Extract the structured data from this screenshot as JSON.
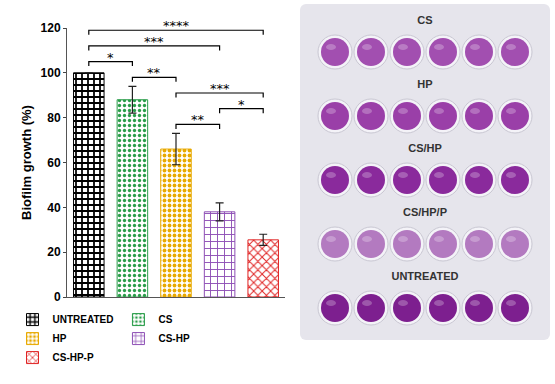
{
  "chart_data": {
    "type": "bar",
    "y_label": "Biofilm growth (%)",
    "categories": [
      "UNTREATED",
      "CS",
      "HP",
      "CS-HP",
      "CS-HP-P"
    ],
    "values": [
      100,
      88,
      66,
      38,
      25.5
    ],
    "errors": [
      0,
      6,
      7,
      4,
      2.5
    ],
    "colors": [
      "#000000",
      "#2a9d4a",
      "#e8a900",
      "#8e4fb5",
      "#e02424"
    ],
    "ylim": [
      0,
      120
    ],
    "yticks": [
      0,
      20,
      40,
      60,
      80,
      100,
      120
    ],
    "grid": false,
    "legend": "bottom",
    "tick_labels": "y",
    "significance": [
      {
        "from": "HP",
        "to": "CS-HP",
        "label": "**"
      },
      {
        "from": "CS-HP",
        "to": "CS-HP-P",
        "label": "*"
      },
      {
        "from": "HP",
        "to": "CS-HP-P",
        "label": "***"
      },
      {
        "from": "CS",
        "to": "HP",
        "label": "**"
      },
      {
        "from": "UNTREATED",
        "to": "CS",
        "label": "*"
      },
      {
        "from": "UNTREATED",
        "to": "CS-HP",
        "label": "***"
      },
      {
        "from": "UNTREATED",
        "to": "CS-HP-P",
        "label": "****"
      }
    ]
  },
  "plate": {
    "labels": [
      "CS",
      "HP",
      "CS/HP",
      "CS/HP/P",
      "UNTREATED"
    ]
  }
}
